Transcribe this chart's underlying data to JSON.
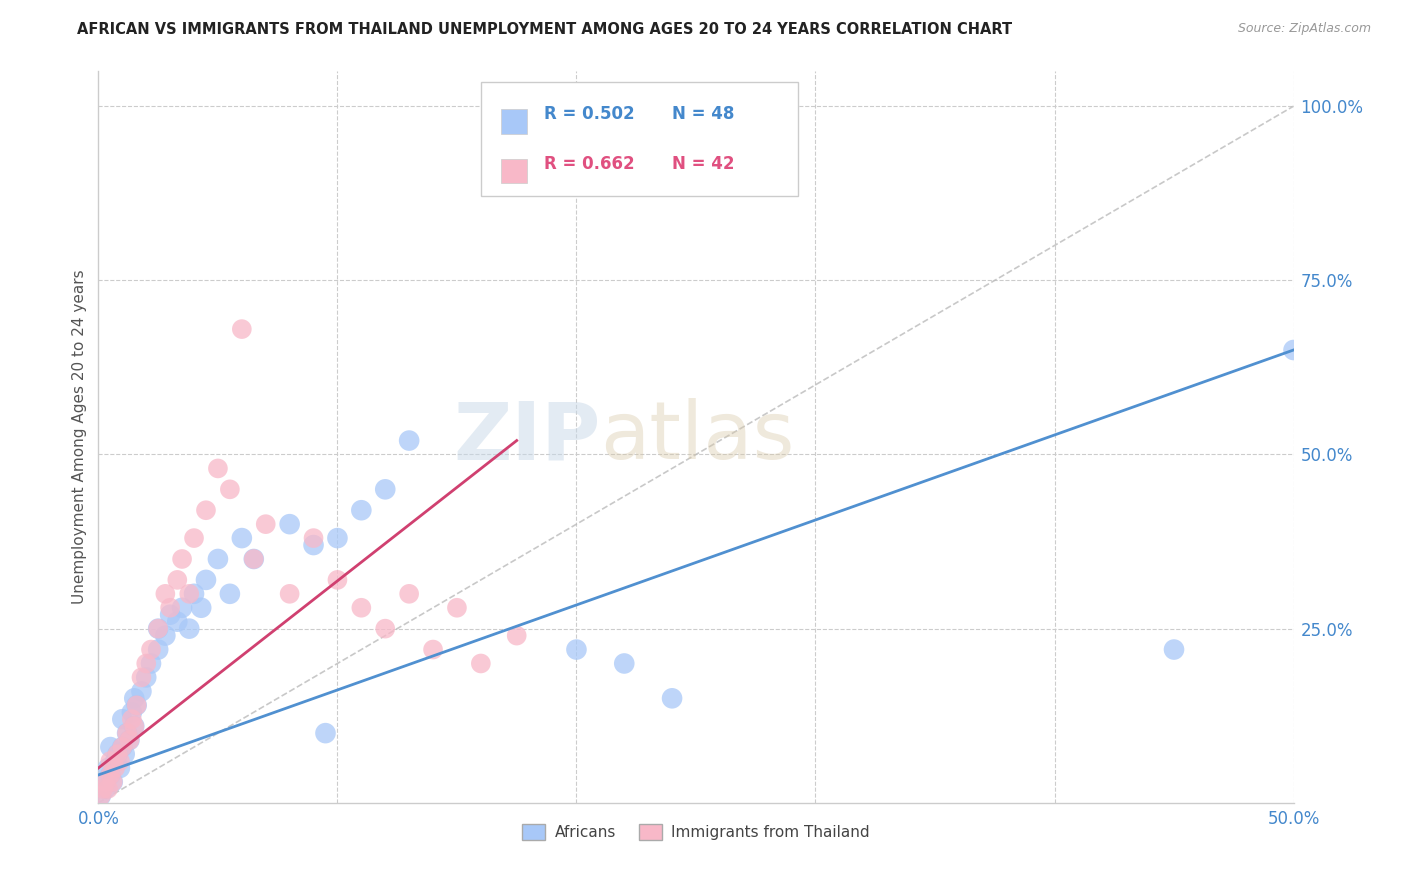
{
  "title": "AFRICAN VS IMMIGRANTS FROM THAILAND UNEMPLOYMENT AMONG AGES 20 TO 24 YEARS CORRELATION CHART",
  "source": "Source: ZipAtlas.com",
  "ylabel": "Unemployment Among Ages 20 to 24 years",
  "xlim": [
    0.0,
    0.5
  ],
  "ylim": [
    0.0,
    1.05
  ],
  "legend_r_blue": "R = 0.502",
  "legend_n_blue": "N = 48",
  "legend_r_pink": "R = 0.662",
  "legend_n_pink": "N = 42",
  "legend_label_blue": "Africans",
  "legend_label_pink": "Immigrants from Thailand",
  "blue_color": "#a8c8f8",
  "pink_color": "#f8b8c8",
  "blue_line_color": "#5090d0",
  "pink_line_color": "#d04070",
  "diagonal_color": "#bbbbbb",
  "watermark_zip": "ZIP",
  "watermark_atlas": "atlas",
  "blue_scatter_x": [
    0.001,
    0.002,
    0.003,
    0.004,
    0.005,
    0.005,
    0.006,
    0.007,
    0.008,
    0.009,
    0.01,
    0.01,
    0.011,
    0.012,
    0.013,
    0.014,
    0.015,
    0.015,
    0.016,
    0.018,
    0.02,
    0.022,
    0.025,
    0.025,
    0.028,
    0.03,
    0.033,
    0.035,
    0.038,
    0.04,
    0.043,
    0.045,
    0.05,
    0.055,
    0.06,
    0.065,
    0.08,
    0.09,
    0.095,
    0.1,
    0.11,
    0.12,
    0.13,
    0.2,
    0.22,
    0.24,
    0.45,
    0.5
  ],
  "blue_scatter_y": [
    0.01,
    0.03,
    0.02,
    0.05,
    0.04,
    0.08,
    0.03,
    0.06,
    0.07,
    0.05,
    0.08,
    0.12,
    0.07,
    0.1,
    0.09,
    0.13,
    0.11,
    0.15,
    0.14,
    0.16,
    0.18,
    0.2,
    0.22,
    0.25,
    0.24,
    0.27,
    0.26,
    0.28,
    0.25,
    0.3,
    0.28,
    0.32,
    0.35,
    0.3,
    0.38,
    0.35,
    0.4,
    0.37,
    0.1,
    0.38,
    0.42,
    0.45,
    0.52,
    0.22,
    0.2,
    0.15,
    0.22,
    0.65
  ],
  "pink_scatter_x": [
    0.001,
    0.002,
    0.003,
    0.004,
    0.005,
    0.005,
    0.006,
    0.007,
    0.008,
    0.009,
    0.01,
    0.012,
    0.013,
    0.014,
    0.015,
    0.016,
    0.018,
    0.02,
    0.022,
    0.025,
    0.028,
    0.03,
    0.033,
    0.035,
    0.038,
    0.04,
    0.045,
    0.05,
    0.055,
    0.06,
    0.065,
    0.07,
    0.08,
    0.09,
    0.1,
    0.11,
    0.12,
    0.13,
    0.14,
    0.15,
    0.16,
    0.175
  ],
  "pink_scatter_y": [
    0.01,
    0.02,
    0.03,
    0.02,
    0.04,
    0.06,
    0.03,
    0.05,
    0.07,
    0.06,
    0.08,
    0.1,
    0.09,
    0.12,
    0.11,
    0.14,
    0.18,
    0.2,
    0.22,
    0.25,
    0.3,
    0.28,
    0.32,
    0.35,
    0.3,
    0.38,
    0.42,
    0.48,
    0.45,
    0.68,
    0.35,
    0.4,
    0.3,
    0.38,
    0.32,
    0.28,
    0.25,
    0.3,
    0.22,
    0.28,
    0.2,
    0.24
  ]
}
